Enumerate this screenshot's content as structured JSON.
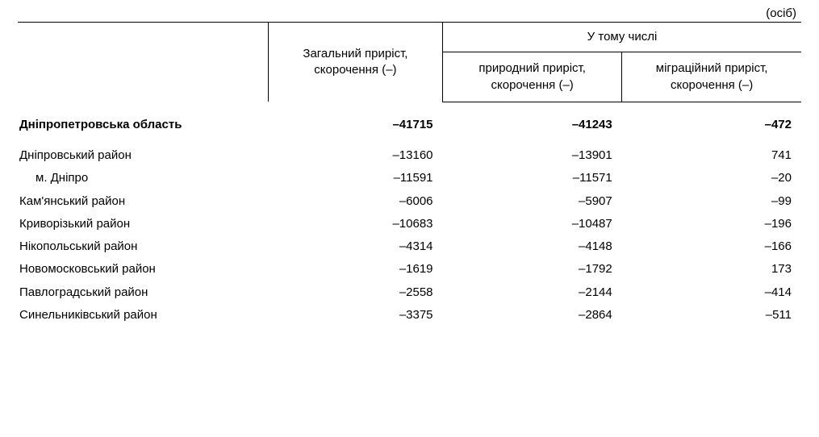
{
  "unit_label": "(осіб)",
  "header": {
    "col1": "Загальний приріст, скорочення (–)",
    "group": "У тому числі",
    "col2": "природний приріст, скорочення (–)",
    "col3": "міграційний приріст, скорочення (–)"
  },
  "region": {
    "name": "Дніпропетровська область",
    "total": "–41715",
    "natural": "–41243",
    "migration": "–472"
  },
  "rows": [
    {
      "name": "Дніпровський район",
      "indent": false,
      "total": "–13160",
      "natural": "–13901",
      "migration": "741"
    },
    {
      "name": "м. Дніпро",
      "indent": true,
      "total": "–11591",
      "natural": "–11571",
      "migration": "–20"
    },
    {
      "name": "Кам'янський район",
      "indent": false,
      "total": "–6006",
      "natural": "–5907",
      "migration": "–99"
    },
    {
      "name": "Криворізький район",
      "indent": false,
      "total": "–10683",
      "natural": "–10487",
      "migration": "–196"
    },
    {
      "name": "Нікопольський район",
      "indent": false,
      "total": "–4314",
      "natural": "–4148",
      "migration": "–166"
    },
    {
      "name": "Новомосковський район",
      "indent": false,
      "total": "–1619",
      "natural": "–1792",
      "migration": "173"
    },
    {
      "name": "Павлоградський район",
      "indent": false,
      "total": "–2558",
      "natural": "–2144",
      "migration": "–414"
    },
    {
      "name": "Синельниківський район",
      "indent": false,
      "total": "–3375",
      "natural": "–2864",
      "migration": "–511"
    }
  ],
  "style": {
    "font_family": "Verdana",
    "base_font_size_pt": 11,
    "border_color": "#000000",
    "background_color": "#ffffff",
    "text_color": "#000000"
  }
}
